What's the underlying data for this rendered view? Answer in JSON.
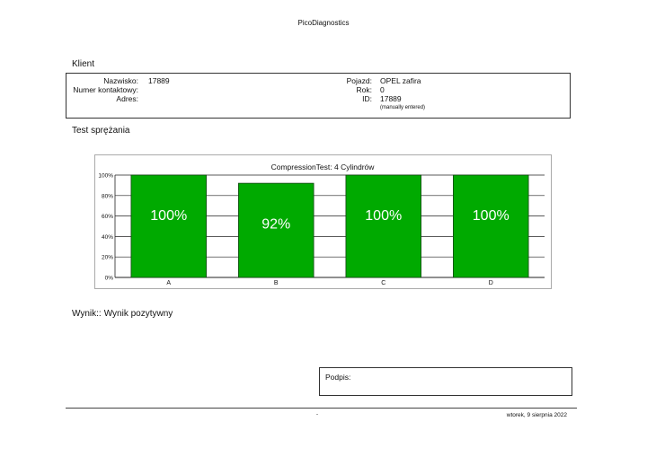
{
  "app_title": "PicoDiagnostics",
  "client_section": {
    "title": "Klient",
    "fields_left": [
      {
        "label": "Nazwisko:",
        "value": "17889"
      },
      {
        "label": "Numer kontaktowy:",
        "value": ""
      },
      {
        "label": "Adres:",
        "value": ""
      }
    ],
    "fields_right": [
      {
        "label": "Pojazd:",
        "value": "OPEL zafira"
      },
      {
        "label": "Rok:",
        "value": "0"
      },
      {
        "label": "ID:",
        "value": "17889"
      }
    ],
    "id_note": "(manually entered)"
  },
  "test_section": {
    "title": "Test sprężania"
  },
  "chart_data": {
    "type": "bar",
    "title": "CompressionTest: 4 Cylindrów",
    "categories": [
      "A",
      "B",
      "C",
      "D"
    ],
    "values": [
      100,
      92,
      100,
      100
    ],
    "value_labels": [
      "100%",
      "92%",
      "100%",
      "100%"
    ],
    "ylim": [
      0,
      100
    ],
    "yticks": [
      "0%",
      "20%",
      "40%",
      "60%",
      "80%",
      "100%"
    ],
    "ytick_values": [
      0,
      20,
      40,
      60,
      80,
      100
    ],
    "grid": true,
    "bar_color": "#00aa00"
  },
  "result": {
    "label": "Wynik::",
    "value": "Wynik pozytywny"
  },
  "signature": {
    "label": "Podpis:"
  },
  "footer": {
    "dash": "-",
    "date": "wtorek, 9 sierpnia 2022"
  }
}
